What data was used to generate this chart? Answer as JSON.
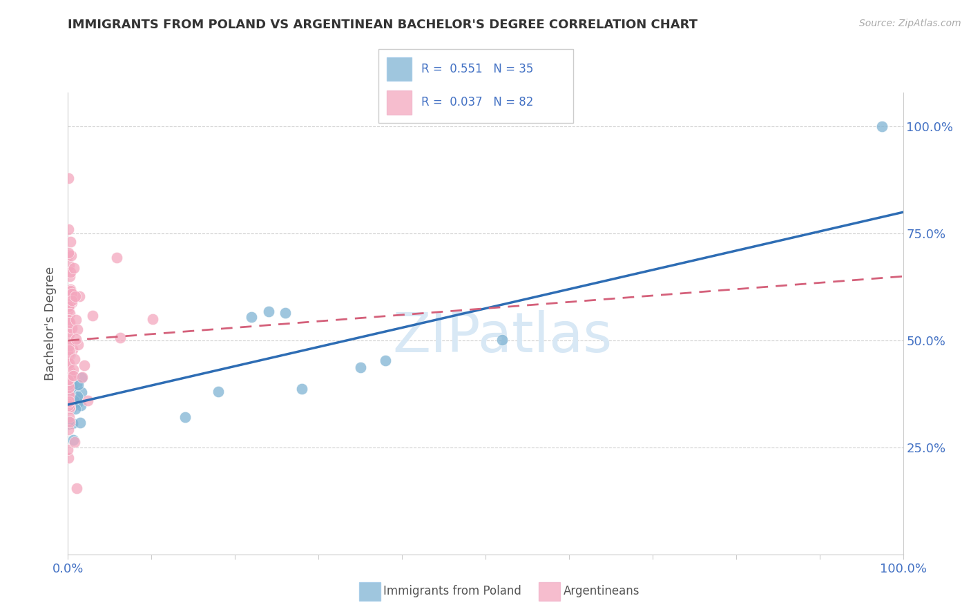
{
  "title": "IMMIGRANTS FROM POLAND VS ARGENTINEAN BACHELOR'S DEGREE CORRELATION CHART",
  "source": "Source: ZipAtlas.com",
  "ylabel": "Bachelor's Degree",
  "blue_color": "#7fb3d3",
  "pink_color": "#f4a7be",
  "blue_line_color": "#2e6db4",
  "pink_line_color": "#d4607a",
  "watermark": "ZIPatlas",
  "R_blue": 0.551,
  "N_blue": 35,
  "R_pink": 0.037,
  "N_pink": 82,
  "blue_trend_x0": 0.0,
  "blue_trend_y0": 0.35,
  "blue_trend_x1": 1.0,
  "blue_trend_y1": 0.8,
  "pink_trend_x0": 0.0,
  "pink_trend_y0": 0.5,
  "pink_trend_x1": 1.0,
  "pink_trend_y1": 0.65,
  "xlim": [
    0.0,
    1.0
  ],
  "ylim": [
    0.0,
    1.08
  ],
  "yticks": [
    0.25,
    0.5,
    0.75,
    1.0
  ],
  "ytick_labels": [
    "25.0%",
    "50.0%",
    "75.0%",
    "100.0%"
  ],
  "xtick_labels_left": "0.0%",
  "xtick_labels_right": "100.0%"
}
